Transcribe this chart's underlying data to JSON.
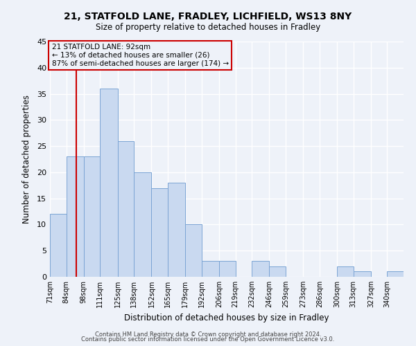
{
  "title1": "21, STATFOLD LANE, FRADLEY, LICHFIELD, WS13 8NY",
  "title2": "Size of property relative to detached houses in Fradley",
  "xlabel": "Distribution of detached houses by size in Fradley",
  "ylabel": "Number of detached properties",
  "bin_labels": [
    "71sqm",
    "84sqm",
    "98sqm",
    "111sqm",
    "125sqm",
    "138sqm",
    "152sqm",
    "165sqm",
    "179sqm",
    "192sqm",
    "206sqm",
    "219sqm",
    "232sqm",
    "246sqm",
    "259sqm",
    "273sqm",
    "286sqm",
    "300sqm",
    "313sqm",
    "327sqm",
    "340sqm"
  ],
  "bin_edges": [
    71,
    84,
    98,
    111,
    125,
    138,
    152,
    165,
    179,
    192,
    206,
    219,
    232,
    246,
    259,
    273,
    286,
    300,
    313,
    327,
    340
  ],
  "counts": [
    12,
    23,
    23,
    36,
    26,
    20,
    17,
    18,
    10,
    3,
    3,
    0,
    3,
    2,
    0,
    0,
    0,
    2,
    1,
    0,
    1
  ],
  "bar_color": "#c9d9f0",
  "bar_edge_color": "#7ba4d4",
  "property_line_x": 92,
  "property_line_color": "#cc0000",
  "annotation_title": "21 STATFOLD LANE: 92sqm",
  "annotation_line1": "← 13% of detached houses are smaller (26)",
  "annotation_line2": "87% of semi-detached houses are larger (174) →",
  "annotation_box_color": "#cc0000",
  "ylim": [
    0,
    45
  ],
  "yticks": [
    0,
    5,
    10,
    15,
    20,
    25,
    30,
    35,
    40,
    45
  ],
  "footer1": "Contains HM Land Registry data © Crown copyright and database right 2024.",
  "footer2": "Contains public sector information licensed under the Open Government Licence v3.0.",
  "bg_color": "#eef2f9"
}
